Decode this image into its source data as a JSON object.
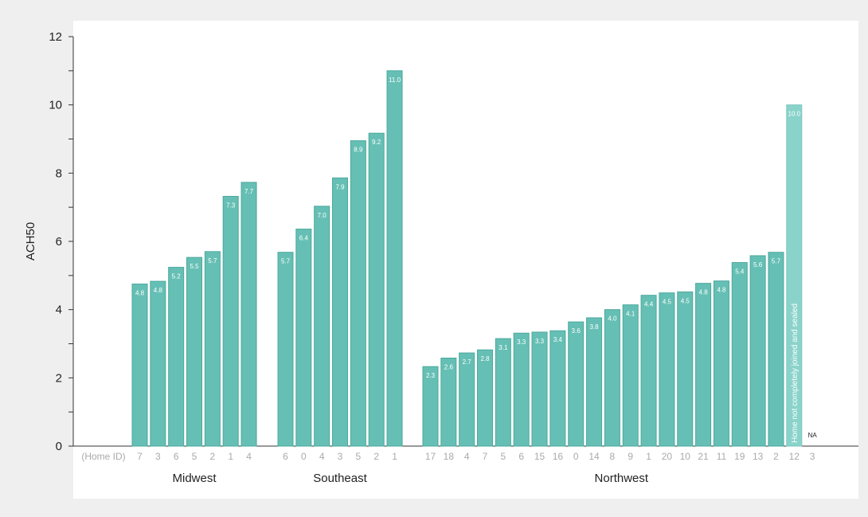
{
  "chart_data": {
    "type": "bar",
    "ylabel": "ACH50",
    "ylim": [
      0,
      12
    ],
    "y_ticks": [
      "0",
      "2",
      "4",
      "6",
      "8",
      "10",
      "12"
    ],
    "x_prefix_label": "(Home ID)",
    "grid": false,
    "colors": {
      "bar": "#66bfb4",
      "bar_edge": "#4aa99c",
      "highlight_bar": "#8ad3ca",
      "tick_text": "#aaaaaa"
    },
    "groups": [
      {
        "name": "Midwest",
        "categories": [
          "7",
          "3",
          "6",
          "5",
          "2",
          "1",
          "4"
        ],
        "values": [
          4.75,
          4.83,
          5.24,
          5.53,
          5.7,
          7.32,
          7.73
        ],
        "labels": [
          "4.8",
          "4.8",
          "5.2",
          "5.5",
          "5.7",
          "7.3",
          "7.7"
        ]
      },
      {
        "name": "Southeast",
        "categories": [
          "6",
          "0",
          "4",
          "3",
          "5",
          "2",
          "1"
        ],
        "values": [
          5.68,
          6.36,
          7.03,
          7.86,
          8.95,
          9.17,
          11.0
        ],
        "labels": [
          "5.7",
          "6.4",
          "7.0",
          "7.9",
          "8.9",
          "9.2",
          "11.0"
        ]
      },
      {
        "name": "Northwest",
        "categories": [
          "17",
          "18",
          "4",
          "7",
          "5",
          "6",
          "15",
          "16",
          "0",
          "14",
          "8",
          "9",
          "1",
          "20",
          "10",
          "21",
          "11",
          "19",
          "13",
          "2",
          "12",
          "3"
        ],
        "values": [
          2.33,
          2.58,
          2.73,
          2.82,
          3.15,
          3.31,
          3.34,
          3.38,
          3.64,
          3.76,
          4.0,
          4.14,
          4.42,
          4.49,
          4.52,
          4.77,
          4.84,
          5.38,
          5.58,
          5.68,
          10.0,
          null
        ],
        "labels": [
          "2.3",
          "2.6",
          "2.7",
          "2.8",
          "3.1",
          "3.3",
          "3.3",
          "3.4",
          "3.6",
          "3.8",
          "4.0",
          "4.1",
          "4.4",
          "4.5",
          "4.5",
          "4.8",
          "4.8",
          "5.4",
          "5.6",
          "5.7",
          "10.0",
          "NA"
        ]
      }
    ],
    "annotations": [
      {
        "group": 2,
        "index": 20,
        "text": "Home not completely joined and sealed"
      }
    ]
  }
}
